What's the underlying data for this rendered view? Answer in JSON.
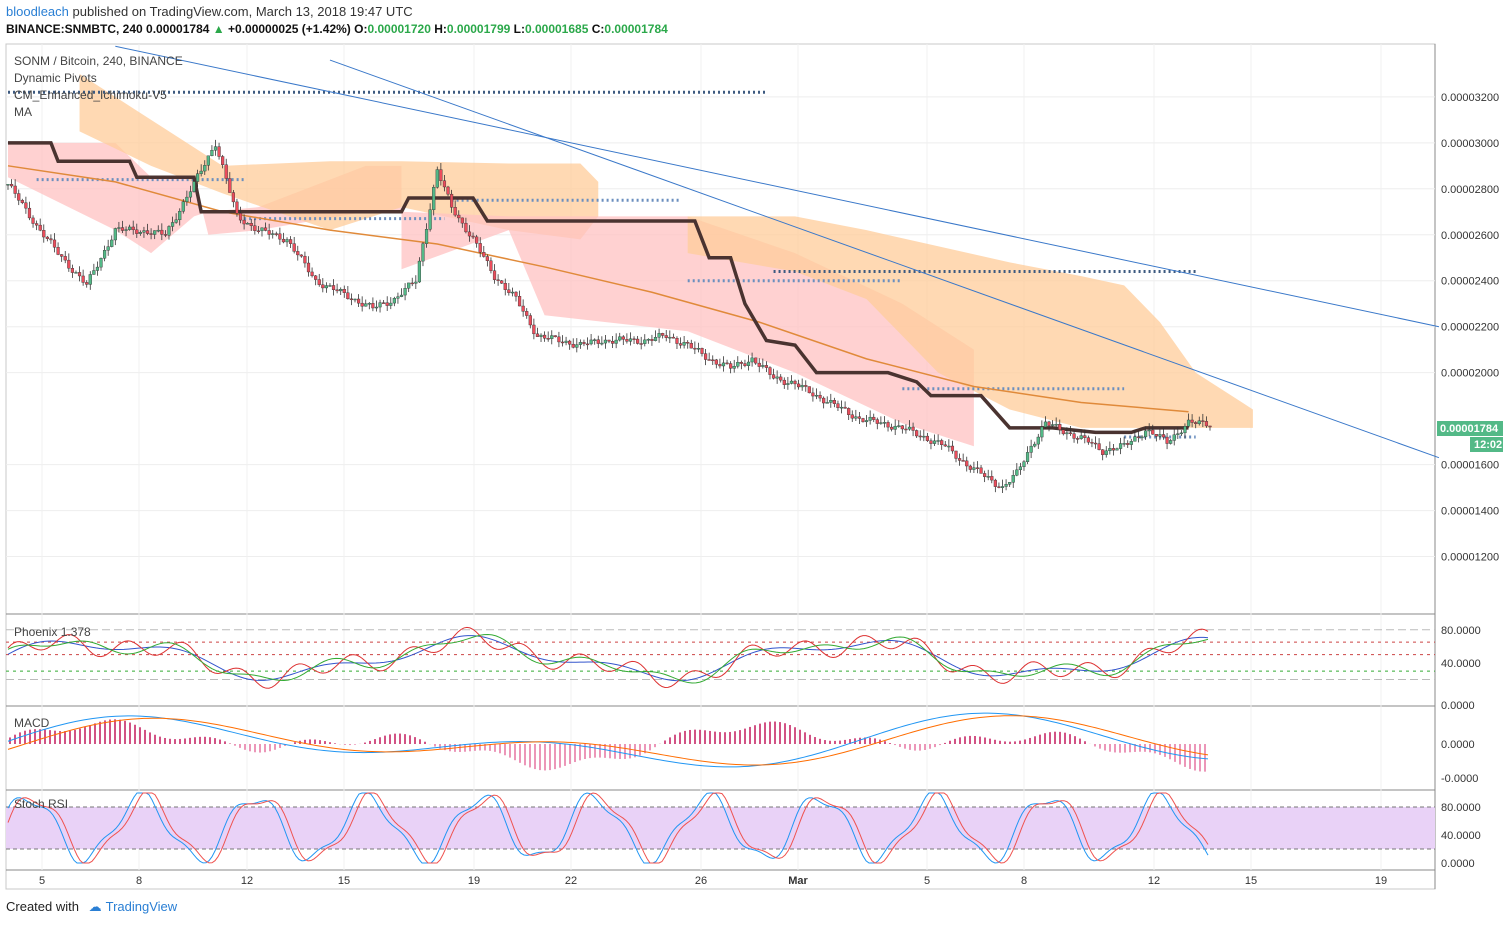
{
  "header": {
    "user": "bloodleach",
    "published": "published on TradingView.com, March 13, 2018 19:47 UTC",
    "symbol_line": "BINANCE:SNMBTC, 240",
    "last": "0.00001784",
    "arrow": "▲",
    "change": "+0.00000025 (+1.42%)",
    "o_label": "O:",
    "o": "0.00001720",
    "h_label": "H:",
    "h": "0.00001799",
    "l_label": "L:",
    "l": "0.00001685",
    "c_label": "C:",
    "c": "0.00001784"
  },
  "legend": {
    "title": "SONM / Bitcoin, 240, BINANCE",
    "ind1": "Dynamic Pivots",
    "ind2": "CM_Enhanced_Ichimoku-V5",
    "ind3": "MA",
    "phoenix": "Phoenix 1.378",
    "macd": "MACD",
    "stoch": "Stoch RSI"
  },
  "price_badge": {
    "price": "0.00001784",
    "timer": "12:02"
  },
  "footer": {
    "created": "Created with",
    "brand": "TradingView"
  },
  "colors": {
    "up": "#53b987",
    "down": "#eb4d5c",
    "accent": "#2a7fd4",
    "cloud_bear": "#ffc1c1",
    "cloud_bull": "#ffcc99",
    "badge": "#53b987"
  },
  "chart_data": [
    {
      "type": "candlestick",
      "title": "SONM / Bitcoin, 240, BINANCE",
      "y_ticks": [
        "0.00003200",
        "0.00003000",
        "0.00002800",
        "0.00002600",
        "0.00002400",
        "0.00002200",
        "0.00002000",
        "0.00001600",
        "0.00001400",
        "0.00001200"
      ],
      "ylim": [
        9.5e-06,
        3.43e-05
      ],
      "x_ticks": [
        "5",
        "8",
        "12",
        "15",
        "19",
        "22",
        "26",
        "Mar",
        "5",
        "8",
        "12",
        "15",
        "19"
      ],
      "close_path": [
        [
          0,
          2.82e-05
        ],
        [
          8,
          2.64e-05
        ],
        [
          14,
          2.52e-05
        ],
        [
          22,
          2.38e-05
        ],
        [
          30,
          2.62e-05
        ],
        [
          36,
          2.62e-05
        ],
        [
          44,
          2.6e-05
        ],
        [
          52,
          2.82e-05
        ],
        [
          58,
          3e-05
        ],
        [
          64,
          2.68e-05
        ],
        [
          70,
          2.62e-05
        ],
        [
          78,
          2.58e-05
        ],
        [
          86,
          2.4e-05
        ],
        [
          94,
          2.34e-05
        ],
        [
          102,
          2.28e-05
        ],
        [
          108,
          2.32e-05
        ],
        [
          114,
          2.4e-05
        ],
        [
          120,
          2.88e-05
        ],
        [
          124,
          2.72e-05
        ],
        [
          130,
          2.58e-05
        ],
        [
          136,
          2.42e-05
        ],
        [
          142,
          2.32e-05
        ],
        [
          148,
          2.16e-05
        ],
        [
          154,
          2.14e-05
        ],
        [
          160,
          2.12e-05
        ],
        [
          166,
          2.14e-05
        ],
        [
          172,
          2.14e-05
        ],
        [
          178,
          2.14e-05
        ],
        [
          184,
          2.16e-05
        ],
        [
          190,
          2.12e-05
        ],
        [
          196,
          2.06e-05
        ],
        [
          202,
          2.02e-05
        ],
        [
          208,
          2.06e-05
        ],
        [
          214,
          1.98e-05
        ],
        [
          220,
          1.95e-05
        ],
        [
          226,
          1.9e-05
        ],
        [
          232,
          1.85e-05
        ],
        [
          238,
          1.8e-05
        ],
        [
          244,
          1.78e-05
        ],
        [
          250,
          1.76e-05
        ],
        [
          256,
          1.72e-05
        ],
        [
          262,
          1.68e-05
        ],
        [
          268,
          1.6e-05
        ],
        [
          274,
          1.54e-05
        ],
        [
          278,
          1.5e-05
        ],
        [
          282,
          1.56e-05
        ],
        [
          286,
          1.68e-05
        ],
        [
          290,
          1.78e-05
        ],
        [
          296,
          1.74e-05
        ],
        [
          302,
          1.7e-05
        ],
        [
          306,
          1.66e-05
        ],
        [
          312,
          1.68e-05
        ],
        [
          318,
          1.75e-05
        ],
        [
          324,
          1.7e-05
        ],
        [
          330,
          1.78e-05
        ]
      ],
      "x_span": 336,
      "ma_path": [
        [
          0,
          2.9e-05
        ],
        [
          30,
          2.83e-05
        ],
        [
          60,
          2.7e-05
        ],
        [
          90,
          2.62e-05
        ],
        [
          120,
          2.56e-05
        ],
        [
          150,
          2.46e-05
        ],
        [
          180,
          2.35e-05
        ],
        [
          210,
          2.22e-05
        ],
        [
          240,
          2.06e-05
        ],
        [
          270,
          1.94e-05
        ],
        [
          300,
          1.87e-05
        ],
        [
          330,
          1.83e-05
        ]
      ],
      "kijun_path": [
        [
          0,
          3e-05
        ],
        [
          12,
          3e-05
        ],
        [
          14,
          2.92e-05
        ],
        [
          34,
          2.92e-05
        ],
        [
          36,
          2.85e-05
        ],
        [
          52,
          2.85e-05
        ],
        [
          54,
          2.7e-05
        ],
        [
          110,
          2.7e-05
        ],
        [
          112,
          2.76e-05
        ],
        [
          130,
          2.76e-05
        ],
        [
          134,
          2.66e-05
        ],
        [
          192,
          2.66e-05
        ],
        [
          196,
          2.5e-05
        ],
        [
          202,
          2.5e-05
        ],
        [
          206,
          2.3e-05
        ],
        [
          212,
          2.14e-05
        ],
        [
          220,
          2.12e-05
        ],
        [
          226,
          2e-05
        ],
        [
          246,
          2e-05
        ],
        [
          254,
          1.96e-05
        ],
        [
          258,
          1.9e-05
        ],
        [
          272,
          1.9e-05
        ],
        [
          280,
          1.76e-05
        ],
        [
          292,
          1.76e-05
        ],
        [
          304,
          1.74e-05
        ],
        [
          314,
          1.74e-05
        ],
        [
          318,
          1.76e-05
        ],
        [
          330,
          1.76e-05
        ]
      ],
      "trendlines": [
        [
          [
            30,
            3.42e-05
          ],
          [
            400,
            2.2e-05
          ]
        ],
        [
          [
            90,
            3.36e-05
          ],
          [
            400,
            1.63e-05
          ]
        ]
      ],
      "pivots_dark": [
        [
          [
            0,
            3.22e-05
          ],
          [
            212,
            3.22e-05
          ]
        ],
        [
          [
            214,
            2.44e-05
          ],
          [
            332,
            2.44e-05
          ]
        ]
      ],
      "pivots_light": [
        [
          [
            8,
            2.84e-05
          ],
          [
            66,
            2.84e-05
          ]
        ],
        [
          [
            66,
            2.67e-05
          ],
          [
            122,
            2.67e-05
          ]
        ],
        [
          [
            124,
            2.75e-05
          ],
          [
            188,
            2.75e-05
          ]
        ],
        [
          [
            190,
            2.4e-05
          ],
          [
            250,
            2.4e-05
          ]
        ],
        [
          [
            250,
            1.93e-05
          ],
          [
            312,
            1.93e-05
          ]
        ],
        [
          [
            312,
            1.72e-05
          ],
          [
            332,
            1.72e-05
          ]
        ]
      ]
    },
    {
      "type": "line",
      "title": "Phoenix 1.378",
      "y_ticks": [
        "80.0000",
        "40.0000",
        "0.0000"
      ]
    },
    {
      "type": "bar",
      "title": "MACD",
      "y_ticks": [
        "0.0000",
        "0.0000",
        "-0.0000"
      ]
    },
    {
      "type": "line",
      "title": "Stoch RSI",
      "y_ticks": [
        "80.0000",
        "40.0000",
        "0.0000"
      ]
    }
  ]
}
